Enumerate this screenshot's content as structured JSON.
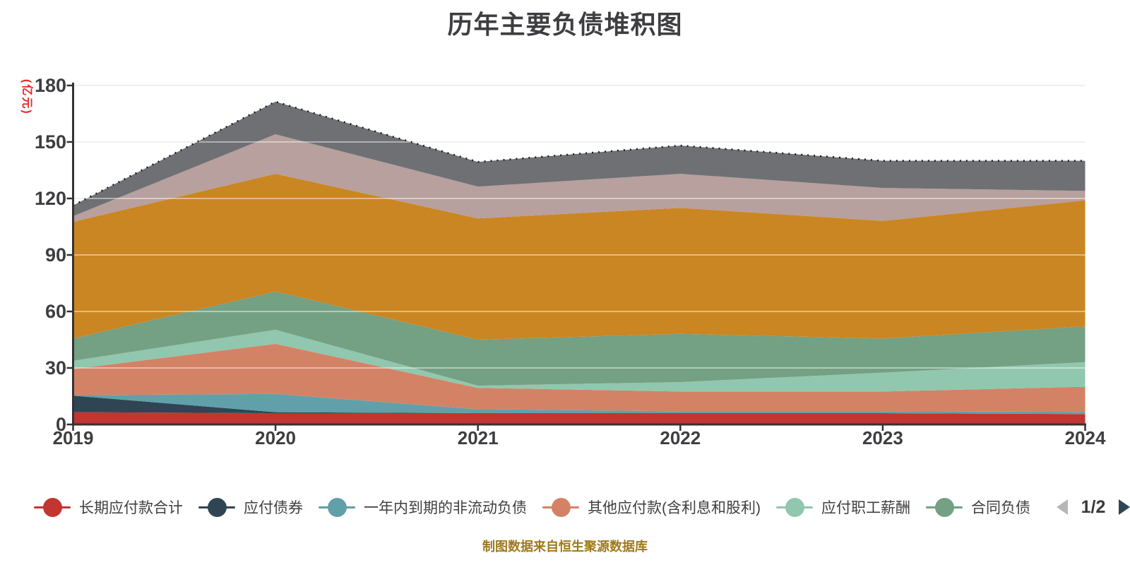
{
  "page_background": "#ffffff",
  "title": "历年主要负债堆积图",
  "source_note": "制图数据来自恒生聚源数据库",
  "source_note_color": "#9e7a1e",
  "legend": {
    "page_indicator": "1/2",
    "prev_icon_color": "#b7b7b7",
    "next_icon_color": "#2f4554"
  },
  "axis": {
    "line_color": "#333333",
    "label_color": "#3e3e42",
    "grid_color": "#e4e4e4",
    "unit_label_color": "#e62828"
  },
  "chart_data": {
    "type": "area",
    "stacked": true,
    "title": "历年主要负债堆积图",
    "xlabel": "",
    "ylabel": "(亿元)",
    "ylim": [
      0,
      180
    ],
    "yticks": [
      0,
      30,
      60,
      90,
      120,
      150,
      180
    ],
    "categories": [
      "2019",
      "2020",
      "2021",
      "2022",
      "2023",
      "2024"
    ],
    "grid": true,
    "legend_position": "bottom",
    "legend_page": "1/2",
    "total_line": {
      "style": "dotted",
      "color": "#1a1a1a"
    },
    "series": [
      {
        "name": "长期应付款合计",
        "color": "#c23531",
        "in_visible_legend": true,
        "values": [
          6.5,
          6.0,
          6.0,
          6.0,
          6.0,
          5.5
        ]
      },
      {
        "name": "应付债券",
        "color": "#2f4554",
        "in_visible_legend": true,
        "values": [
          8.8,
          0.5,
          0.0,
          0.0,
          0.0,
          0.0
        ]
      },
      {
        "name": "一年内到期的非流动负债",
        "color": "#61a0a8",
        "in_visible_legend": true,
        "values": [
          0.2,
          9.7,
          2.1,
          1.0,
          1.0,
          1.2
        ]
      },
      {
        "name": "其他应付款(含利息和股利)",
        "color": "#d48265",
        "in_visible_legend": true,
        "values": [
          13.9,
          26.6,
          11.3,
          10.5,
          10.5,
          13.3
        ]
      },
      {
        "name": "应付职工薪酬",
        "color": "#91c7ae",
        "in_visible_legend": true,
        "values": [
          4.4,
          7.5,
          1.2,
          5.0,
          10.0,
          13.1
        ]
      },
      {
        "name": "合同负债",
        "color": "#74a083",
        "in_visible_legend": true,
        "values": [
          11.8,
          20.3,
          24.4,
          25.6,
          18.1,
          19.0
        ]
      },
      {
        "name": "",
        "color": "#ca8622",
        "in_visible_legend": false,
        "values": [
          62.0,
          62.5,
          64.4,
          66.9,
          62.5,
          66.9
        ]
      },
      {
        "name": "",
        "color": "#b7a09d",
        "in_visible_legend": false,
        "values": [
          3.0,
          21.0,
          16.9,
          18.1,
          17.5,
          5.0
        ]
      },
      {
        "name": "",
        "color": "#6e7074",
        "in_visible_legend": false,
        "values": [
          5.7,
          17.3,
          13.1,
          15.0,
          14.4,
          16.0
        ]
      }
    ]
  }
}
